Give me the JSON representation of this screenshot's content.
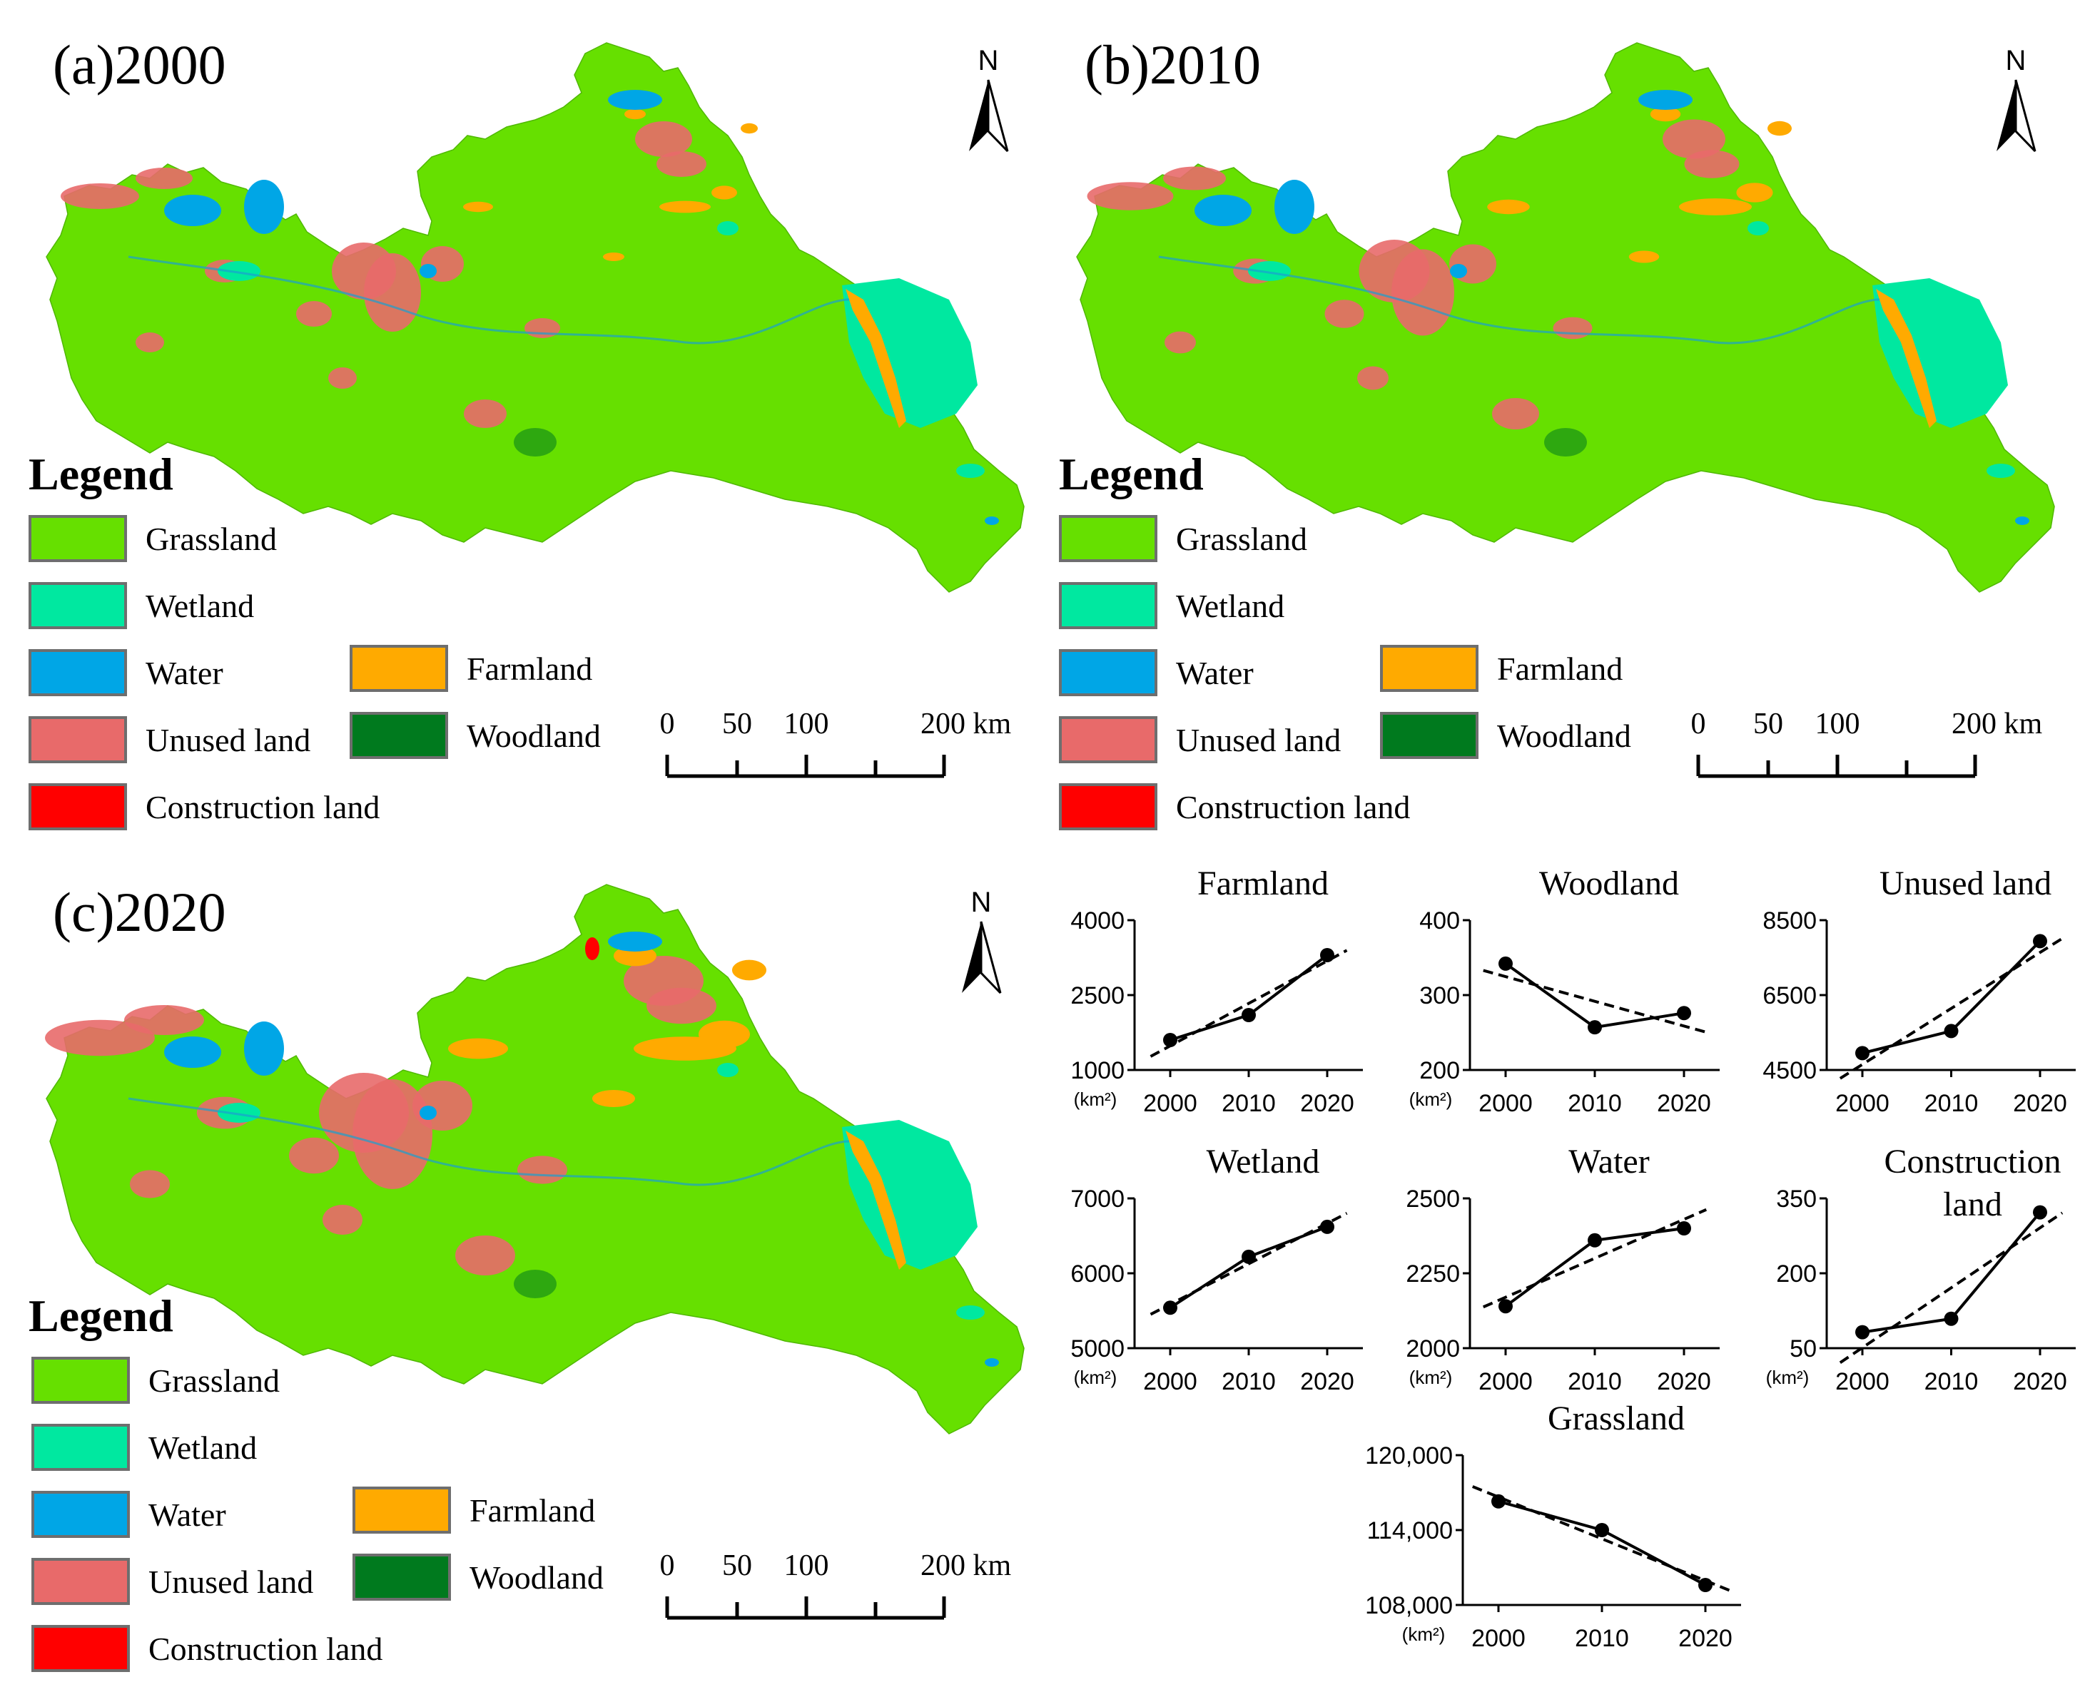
{
  "colors": {
    "Grassland": "#66e000",
    "Wetland": "#00e8a0",
    "Water": "#00a6e6",
    "Unused land": "#e86a6a",
    "Construction land": "#ff0000",
    "Farmland": "#ffaa00",
    "Woodland": "#007a1e"
  },
  "legend": {
    "title": "Legend",
    "items_left": [
      "Grassland",
      "Wetland",
      "Water",
      "Unused land",
      "Construction land"
    ],
    "items_right": [
      "Farmland",
      "Woodland"
    ]
  },
  "scalebar": {
    "labels": [
      "0",
      "50",
      "100",
      "200 km"
    ]
  },
  "north": {
    "label": "N",
    "icon": "north-arrow-icon"
  },
  "panels": [
    {
      "id": "a",
      "title": "(a)2000"
    },
    {
      "id": "b",
      "title": "(b)2010"
    },
    {
      "id": "c",
      "title": "(c)2020"
    }
  ],
  "chart_data": [
    {
      "type": "line",
      "title": "Farmland",
      "x": [
        2000,
        2010,
        2020
      ],
      "values": [
        1600,
        2100,
        3300
      ],
      "ylim": [
        1000,
        4000
      ],
      "yticks": [
        "1000",
        "2500",
        "4000"
      ],
      "ylabel": "(km²)",
      "trend": "dashed"
    },
    {
      "type": "line",
      "title": "Woodland",
      "x": [
        2000,
        2010,
        2020
      ],
      "values": [
        342,
        257,
        276
      ],
      "ylim": [
        200,
        400
      ],
      "yticks": [
        "200",
        "300",
        "400"
      ],
      "ylabel": "(km²)",
      "trend": "dashed"
    },
    {
      "type": "line",
      "title": "Unused land",
      "x": [
        2000,
        2010,
        2020
      ],
      "values": [
        4950,
        5540,
        7940
      ],
      "ylim": [
        4500,
        8500
      ],
      "yticks": [
        "4500",
        "6500",
        "8500"
      ],
      "ylabel": "",
      "trend": "dashed"
    },
    {
      "type": "line",
      "title": "Wetland",
      "x": [
        2000,
        2010,
        2020
      ],
      "values": [
        5540,
        6220,
        6620
      ],
      "ylim": [
        5000,
        7000
      ],
      "yticks": [
        "5000",
        "6000",
        "7000"
      ],
      "ylabel": "(km²)",
      "trend": "dashed"
    },
    {
      "type": "line",
      "title": "Water",
      "x": [
        2000,
        2010,
        2020
      ],
      "values": [
        2140,
        2360,
        2400
      ],
      "ylim": [
        2000,
        2500
      ],
      "yticks": [
        "2000",
        "2250",
        "2500"
      ],
      "ylabel": "(km²)",
      "trend": "dashed"
    },
    {
      "type": "line",
      "title": "Construction land",
      "x": [
        2000,
        2010,
        2020
      ],
      "values": [
        82,
        109,
        322
      ],
      "ylim": [
        50,
        350
      ],
      "yticks": [
        "50",
        "200",
        "350"
      ],
      "ylabel": "(km²)",
      "trend": "dashed"
    },
    {
      "type": "line",
      "title": "Grassland",
      "x": [
        2000,
        2010,
        2020
      ],
      "values": [
        116300,
        114000,
        109600
      ],
      "ylim": [
        108000,
        120000
      ],
      "yticks": [
        "108,000",
        "114,000",
        "120,000"
      ],
      "ylabel": "(km²)",
      "trend": "dashed"
    }
  ]
}
